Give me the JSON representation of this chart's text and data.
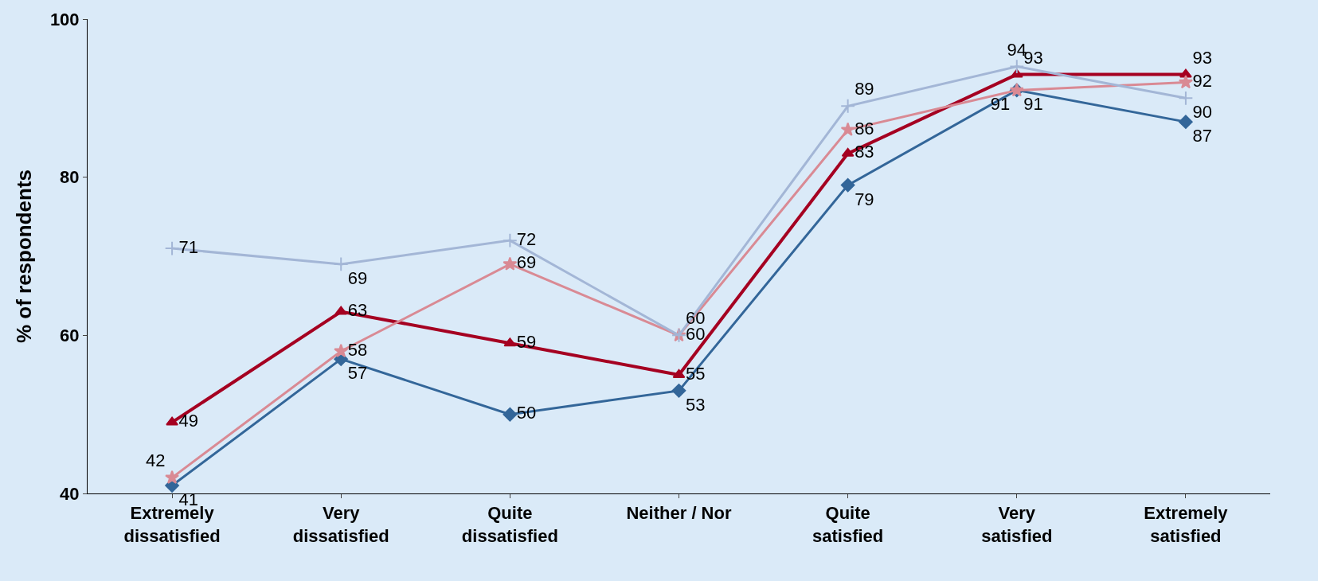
{
  "chart_data": {
    "type": "line",
    "ylabel": "% of respondents",
    "categories": [
      "Extremely\ndissatisfied",
      "Very\ndissatisfied",
      "Quite\ndissatisfied",
      "Neither / Nor",
      "Quite\nsatisfied",
      "Very\nsatisfied",
      "Extremely\nsatisfied"
    ],
    "series": [
      {
        "color": "#336699",
        "marker": "diamond",
        "values": [
          41,
          57,
          50,
          53,
          79,
          91,
          87
        ]
      },
      {
        "color": "#a50021",
        "marker": "triangle",
        "values": [
          49,
          63,
          59,
          55,
          83,
          93,
          93
        ]
      },
      {
        "color": "#d98a94",
        "marker": "star",
        "values": [
          42,
          58,
          69,
          60,
          86,
          91,
          92
        ]
      },
      {
        "color": "#a3b6d6",
        "marker": "cross",
        "values": [
          71,
          69,
          72,
          60,
          89,
          94,
          90
        ]
      }
    ],
    "ylim": [
      40,
      100
    ],
    "yticks": [
      40,
      60,
      80,
      100
    ],
    "grid": false,
    "legend": false,
    "data_labels": true
  }
}
